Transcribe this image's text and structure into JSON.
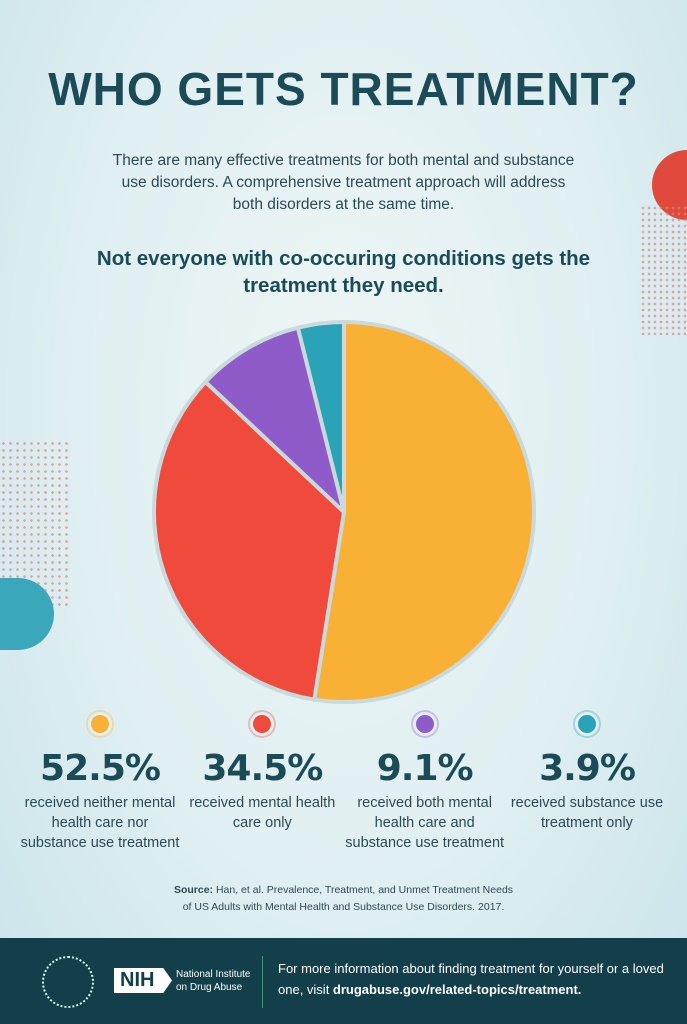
{
  "title": "WHO GETS TREATMENT?",
  "intro": "There are many effective treatments for both mental and substance use disorders. A comprehensive treatment approach will address both disorders at the same time.",
  "subhead": "Not everyone with co-occuring conditions gets the treatment they need.",
  "chart_data": {
    "type": "pie",
    "start": "12 o'clock, clockwise",
    "categories": [
      "received neither mental health care nor substance use treatment",
      "received mental health care only",
      "received both mental health care and substance use treatment",
      "received substance use treatment only"
    ],
    "values": [
      52.5,
      34.5,
      9.1,
      3.9
    ],
    "labels": [
      "52.5%",
      "34.5%",
      "9.1%",
      "3.9%"
    ],
    "colors": [
      "#f8b035",
      "#ef4a3c",
      "#8f5bc8",
      "#2aa2b7"
    ],
    "legend": "bottom"
  },
  "source": {
    "label": "Source:",
    "line1": " Han, et al. Prevalence, Treatment, and Unmet Treatment Needs",
    "line2": "of US Adults with Mental Health and Substance Use Disorders. 2017."
  },
  "footer": {
    "logo_text": "NIH",
    "institute_line1": "National Institute",
    "institute_line2": "on Drug Abuse",
    "info": "For more information about finding treatment for yourself or a loved one, visit ",
    "link": "drugabuse.gov/related-topics/treatment."
  }
}
